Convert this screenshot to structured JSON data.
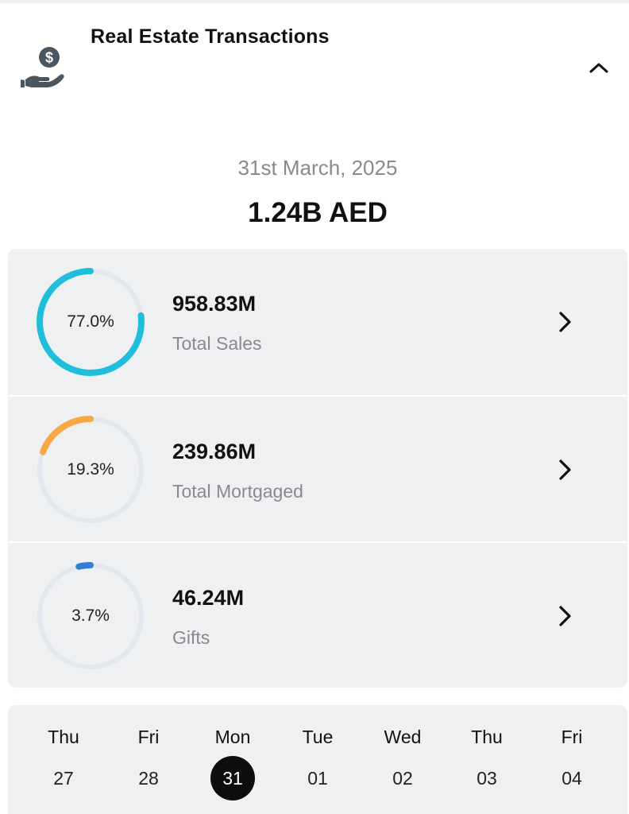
{
  "header": {
    "title": "Real Estate Transactions",
    "icon": "hand-dollar-icon",
    "collapse_icon": "chevron-up-icon"
  },
  "summary": {
    "date": "31st March, 2025",
    "total": "1.24B AED"
  },
  "breakdown": [
    {
      "percent_label": "77.0%",
      "percent": 77.0,
      "value": "958.83M",
      "label": "Total Sales",
      "color": "#1fbfdc"
    },
    {
      "percent_label": "19.3%",
      "percent": 19.3,
      "value": "239.86M",
      "label": "Total Mortgaged",
      "color": "#f7a744"
    },
    {
      "percent_label": "3.7%",
      "percent": 3.7,
      "value": "46.24M",
      "label": "Gifts",
      "color": "#2f7fd6"
    }
  ],
  "track_color": "#e3e7ee",
  "calendar": {
    "days": [
      {
        "name": "Thu",
        "num": "27",
        "selected": false
      },
      {
        "name": "Fri",
        "num": "28",
        "selected": false
      },
      {
        "name": "Mon",
        "num": "31",
        "selected": true
      },
      {
        "name": "Tue",
        "num": "01",
        "selected": false
      },
      {
        "name": "Wed",
        "num": "02",
        "selected": false
      },
      {
        "name": "Thu",
        "num": "03",
        "selected": false
      },
      {
        "name": "Fri",
        "num": "04",
        "selected": false
      }
    ]
  }
}
